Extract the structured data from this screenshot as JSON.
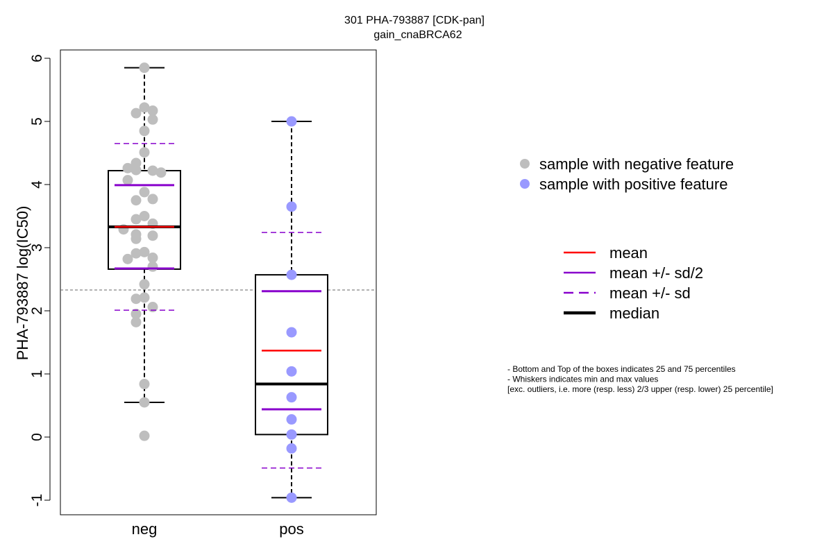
{
  "chart_data": {
    "type": "boxplot",
    "title": "301 PHA-793887 [CDK-pan]",
    "subtitle": "gain_cnaBRCA62",
    "ylabel": "PHA-793887 log(IC50)",
    "xlabel": "",
    "ylim": [
      -1.2,
      6.15
    ],
    "yticks": [
      "-1",
      "0",
      "1",
      "2",
      "3",
      "4",
      "5",
      "6"
    ],
    "reference_line_y": 2.33,
    "categories": [
      "neg",
      "pos"
    ],
    "groups": [
      {
        "category": "neg",
        "color": "#bebebe",
        "box": {
          "q1": 2.66,
          "median": 3.33,
          "q3": 4.22,
          "whisker_low": 0.55,
          "whisker_high": 5.85
        },
        "mean": 3.33,
        "mean_minus_half_sd": 2.67,
        "mean_plus_half_sd": 3.99,
        "mean_minus_sd": 2.01,
        "mean_plus_sd": 4.65,
        "points": [
          5.85,
          5.22,
          5.13,
          5.17,
          5.03,
          4.85,
          4.51,
          4.34,
          4.23,
          4.22,
          4.26,
          4.19,
          4.07,
          3.88,
          3.75,
          3.77,
          3.5,
          3.45,
          3.38,
          3.21,
          3.14,
          3.19,
          3.29,
          2.93,
          2.91,
          2.84,
          2.82,
          2.7,
          2.42,
          2.21,
          2.19,
          2.06,
          1.95,
          1.82,
          0.84,
          0.55,
          0.02
        ]
      },
      {
        "category": "pos",
        "color": "#9999ff",
        "box": {
          "q1": 0.04,
          "median": 0.84,
          "q3": 2.57,
          "whisker_low": -0.96,
          "whisker_high": 5.0
        },
        "mean": 1.37,
        "mean_minus_half_sd": 0.44,
        "mean_plus_half_sd": 2.31,
        "mean_minus_sd": -0.49,
        "mean_plus_sd": 3.24,
        "points": [
          5.0,
          3.65,
          2.57,
          1.66,
          1.04,
          0.63,
          0.28,
          0.04,
          -0.18,
          -0.96
        ]
      }
    ],
    "legend_points": [
      {
        "label": "sample with negative feature",
        "color": "#bebebe"
      },
      {
        "label": "sample with positive feature",
        "color": "#9999ff"
      }
    ],
    "legend_lines": [
      {
        "label": "mean",
        "color": "#ff0000",
        "style": "solid",
        "weight": "normal"
      },
      {
        "label": "mean +/- sd/2",
        "color": "#8800cc",
        "style": "solid",
        "weight": "normal"
      },
      {
        "label": "mean +/- sd",
        "color": "#8800cc",
        "style": "dashed",
        "weight": "normal"
      },
      {
        "label": "median",
        "color": "#000000",
        "style": "solid",
        "weight": "bold"
      }
    ],
    "notes": [
      "- Bottom and Top of the boxes indicates 25 and 75 percentiles",
      "- Whiskers indicates min and max values",
      "[exc. outliers, i.e. more (resp. less) 2/3 upper (resp. lower) 25 percentile]"
    ]
  }
}
